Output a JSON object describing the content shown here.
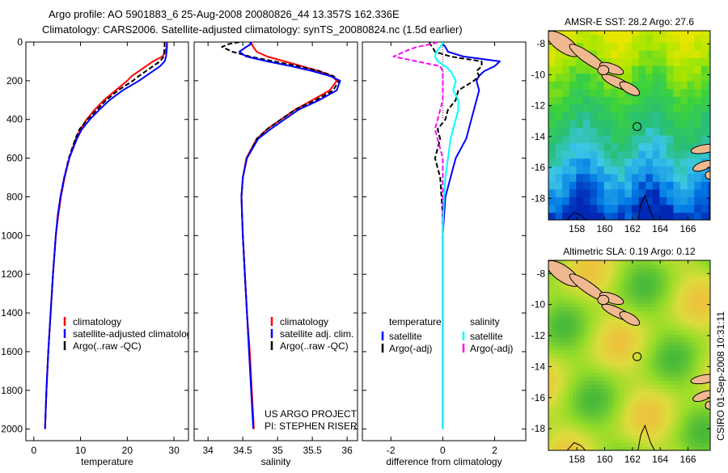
{
  "title": {
    "line1": "Argo profile: AO 5901883_6 25-Aug-2008 20080826_44 13.357S 162.336E",
    "line2": "Climatology: CARS2006. Satellite-adjusted climatology: synTS_20080824.nc (1.5d earlier)"
  },
  "timestamp": "CSIRO 01-Sep-2008 10:31:11",
  "credit": {
    "line1": "US ARGO PROJECT",
    "line2": "PI: STEPHEN RISER"
  },
  "chart_data": [
    {
      "type": "line",
      "xlabel": "temperature",
      "xlim": [
        -1.7,
        33.1
      ],
      "ylim": [
        0,
        2060
      ],
      "yreversed": true,
      "xticks": [
        "0",
        "10",
        "20",
        "30"
      ],
      "yticks": [
        "0",
        "200",
        "400",
        "600",
        "800",
        "1000",
        "1200",
        "1400",
        "1600",
        "1800",
        "2000"
      ],
      "depth": [
        0,
        10,
        25,
        50,
        75,
        100,
        125,
        150,
        175,
        200,
        250,
        300,
        350,
        400,
        450,
        500,
        600,
        700,
        800,
        900,
        1000,
        1200,
        1400,
        1600,
        1800,
        2000
      ],
      "series": [
        {
          "name": "climatology",
          "color": "#ff0000",
          "dash": "",
          "values": [
            28.5,
            28.5,
            28.4,
            28.2,
            27.5,
            25.5,
            24,
            22.5,
            21,
            20,
            17.5,
            15,
            13,
            11.3,
            10,
            9,
            7.6,
            6.6,
            5.8,
            5.2,
            4.7,
            4.1,
            3.6,
            3.1,
            2.7,
            2.4
          ]
        },
        {
          "name": "satellite-adjusted climatology",
          "color": "#0000ff",
          "dash": "",
          "values": [
            28.5,
            28.5,
            28.5,
            28.4,
            28.3,
            28,
            27,
            25.5,
            24,
            22.5,
            19,
            16.2,
            14,
            12,
            10.3,
            9.2,
            7.6,
            6.5,
            5.7,
            5.1,
            4.7,
            4.1,
            3.6,
            3.1,
            2.7,
            2.4
          ]
        },
        {
          "name": "Argo(..raw -QC)",
          "color": "#000000",
          "dash": "6,3",
          "values": [
            28.0,
            28.0,
            28.0,
            27.9,
            27.8,
            27,
            25.5,
            24,
            22.5,
            21.2,
            18,
            15.5,
            13.5,
            11.5,
            9.8,
            8.9,
            7.5,
            6.5,
            5.7,
            5.1,
            4.7,
            4.1,
            3.6,
            3.1,
            2.7,
            2.4
          ]
        }
      ]
    },
    {
      "type": "line",
      "xlabel": "salinity",
      "xlim": [
        33.8,
        36.15
      ],
      "ylim": [
        0,
        2060
      ],
      "yreversed": true,
      "xticks": [
        "34",
        "34.5",
        "35",
        "35.5",
        "36"
      ],
      "depth": [
        0,
        10,
        25,
        50,
        75,
        100,
        125,
        150,
        175,
        200,
        250,
        300,
        350,
        400,
        450,
        500,
        600,
        700,
        800,
        900,
        1000,
        1200,
        1400,
        1600,
        1800,
        2000
      ],
      "series": [
        {
          "name": "climatology",
          "color": "#ff0000",
          "dash": "",
          "values": [
            34.62,
            34.63,
            34.65,
            34.7,
            34.85,
            35.1,
            35.35,
            35.6,
            35.78,
            35.85,
            35.75,
            35.5,
            35.25,
            35.05,
            34.85,
            34.7,
            34.55,
            34.5,
            34.48,
            34.49,
            34.5,
            34.53,
            34.56,
            34.6,
            34.63,
            34.66
          ]
        },
        {
          "name": "satellite adj. clim.",
          "color": "#0000ff",
          "dash": "",
          "values": [
            34.6,
            34.62,
            34.55,
            34.45,
            34.55,
            34.85,
            35.2,
            35.5,
            35.75,
            35.9,
            35.85,
            35.6,
            35.3,
            35.1,
            34.9,
            34.72,
            34.56,
            34.5,
            34.48,
            34.49,
            34.5,
            34.53,
            34.56,
            34.59,
            34.62,
            34.65
          ]
        },
        {
          "name": "Argo(..raw -QC)",
          "color": "#000000",
          "dash": "6,3",
          "values": [
            34.45,
            34.3,
            34.2,
            34.35,
            34.6,
            34.95,
            35.3,
            35.6,
            35.8,
            35.88,
            35.8,
            35.55,
            35.25,
            35.05,
            34.85,
            34.7,
            34.56,
            34.5,
            34.48,
            34.49,
            34.5,
            34.53,
            34.56,
            34.59,
            34.62,
            34.65
          ]
        }
      ]
    },
    {
      "type": "line",
      "xlabel": "difference from climatology",
      "xlim": [
        -3.1,
        3.2
      ],
      "ylim": [
        0,
        2060
      ],
      "yreversed": true,
      "xticks": [
        "-2",
        "0",
        "2"
      ],
      "legend_headers": [
        "temperature",
        "salinity"
      ],
      "depth": [
        0,
        10,
        25,
        50,
        75,
        100,
        125,
        150,
        175,
        200,
        250,
        300,
        350,
        400,
        450,
        500,
        600,
        700,
        800,
        900,
        1000,
        1200,
        1400,
        1600,
        1800,
        2000
      ],
      "series": [
        {
          "name": "satellite",
          "group": "temperature",
          "color": "#0000ff",
          "dash": "",
          "values": [
            0,
            0,
            0.1,
            0.2,
            0.8,
            2.2,
            2.0,
            1.6,
            1.4,
            1.3,
            1.4,
            1.3,
            1.2,
            1.1,
            1.0,
            0.9,
            0.5,
            0.3,
            0.1,
            0.05,
            0,
            0,
            0,
            0,
            0,
            0
          ]
        },
        {
          "name": "Argo(-adj)",
          "group": "temperature",
          "color": "#000000",
          "dash": "6,3",
          "values": [
            -0.5,
            -0.5,
            -0.4,
            -0.3,
            0.3,
            1.5,
            1.5,
            1.3,
            1.4,
            1.2,
            0.6,
            0.5,
            0.2,
            0.1,
            -0.2,
            -0.1,
            -0.3,
            -0.1,
            -0.05,
            0,
            0,
            0,
            0,
            0,
            0,
            0
          ]
        },
        {
          "name": "satellite",
          "group": "salinity",
          "color": "#00ffff",
          "dash": "",
          "values": [
            -0.02,
            -0.01,
            -0.1,
            -0.25,
            -0.3,
            -0.2,
            0.1,
            0.3,
            0.4,
            0.5,
            0.4,
            0.6,
            0.6,
            0.5,
            0.4,
            0.3,
            0.2,
            0.1,
            0.05,
            0.02,
            0,
            0,
            0,
            0,
            0,
            0
          ]
        },
        {
          "name": "Argo(-adj)",
          "group": "salinity",
          "color": "#ff00ff",
          "dash": "6,3",
          "values": [
            -0.2,
            -0.4,
            -1.0,
            -1.5,
            -1.9,
            -1.0,
            -0.1,
            0,
            0,
            0,
            0,
            0,
            -0.1,
            -0.2,
            -0.3,
            -0.2,
            0,
            0,
            0,
            0,
            0,
            0,
            0,
            0,
            0,
            0
          ]
        }
      ]
    },
    {
      "type": "heatmap",
      "title": "AMSR-E SST: 28.2 Argo: 27.6",
      "xlim": [
        155.95,
        167.6
      ],
      "ylim": [
        -19.4,
        -7.15
      ],
      "xticks": [
        "158",
        "160",
        "162",
        "164",
        "166"
      ],
      "yticks": [
        "-8",
        "-10",
        "-12",
        "-14",
        "-16",
        "-18"
      ],
      "argo_position": [
        162.336,
        -13.357
      ],
      "palette": "sst"
    },
    {
      "type": "heatmap",
      "title": "Altimetric SLA: 0.19 Argo: 0.12",
      "xlim": [
        155.95,
        167.6
      ],
      "ylim": [
        -19.4,
        -7.15
      ],
      "xticks": [
        "158",
        "160",
        "162",
        "164",
        "166"
      ],
      "yticks": [
        "-8",
        "-10",
        "-12",
        "-14",
        "-16",
        "-18"
      ],
      "argo_position": [
        162.336,
        -13.357
      ],
      "palette": "sla"
    }
  ]
}
